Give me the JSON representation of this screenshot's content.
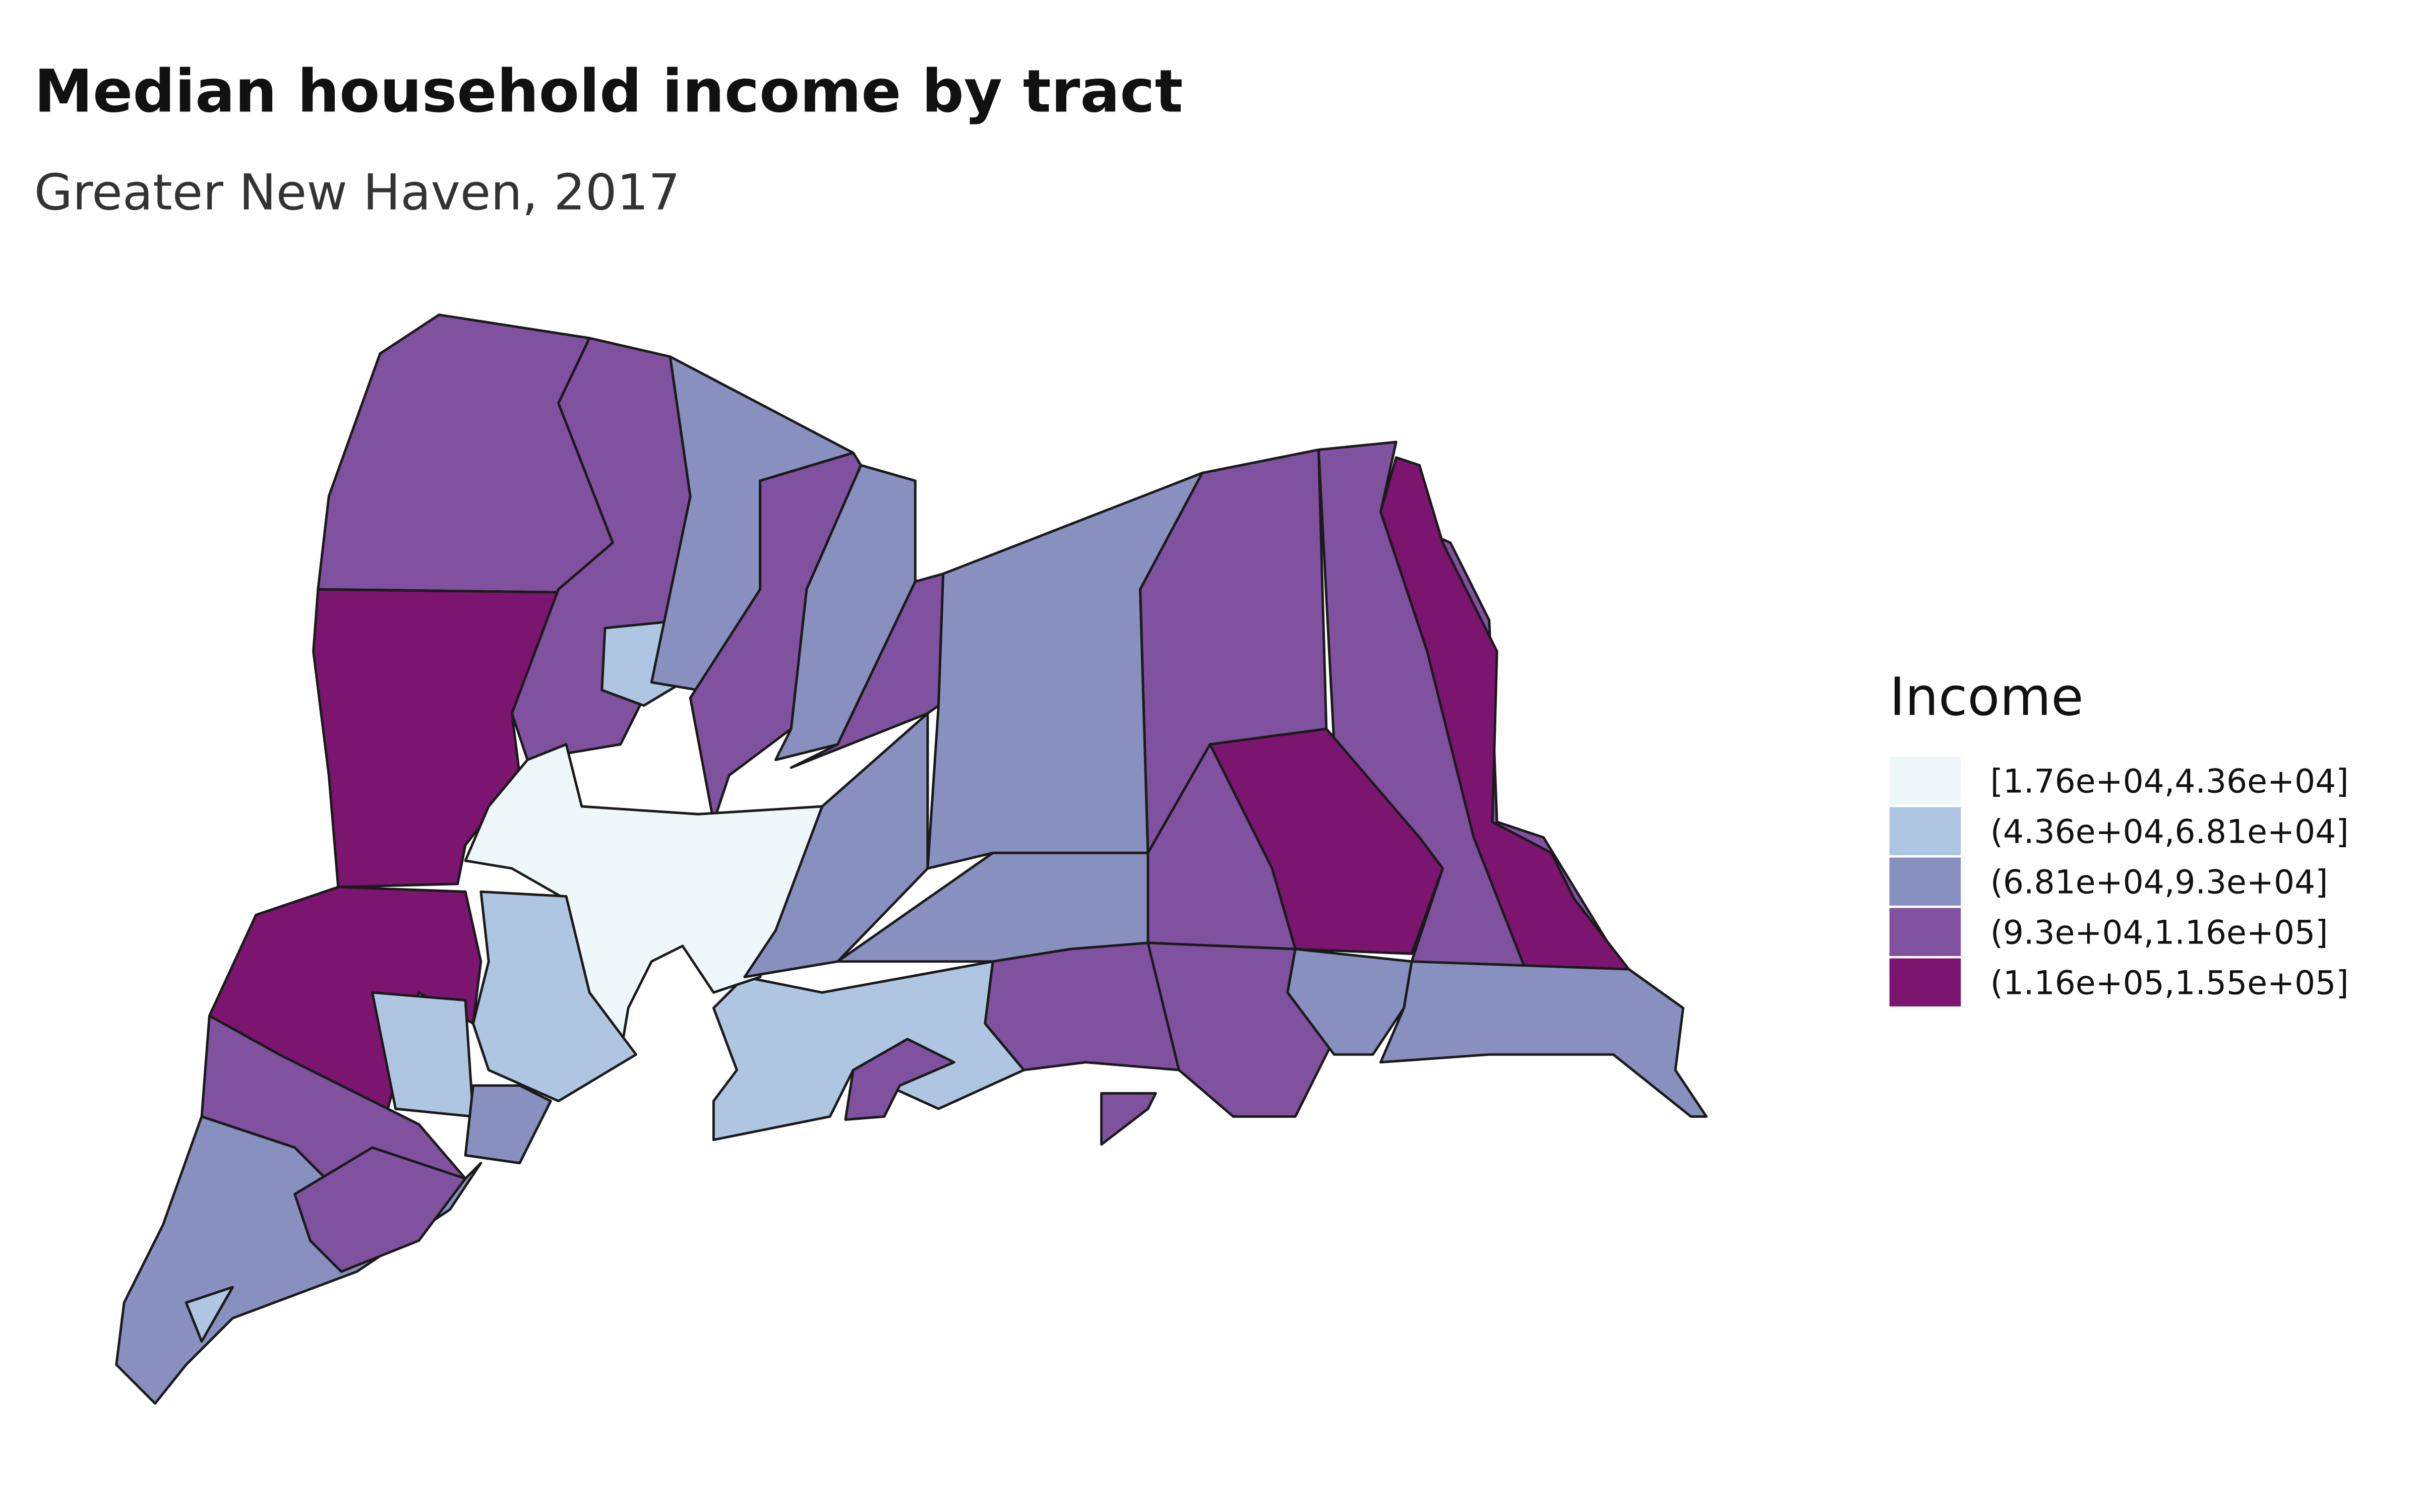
{
  "title": "Median household income by tract",
  "subtitle": "Greater New Haven, 2017",
  "legend": {
    "title": "Income",
    "items": [
      {
        "label": "[1.76e+04,4.36e+04]",
        "color": "#eef7fa"
      },
      {
        "label": "(4.36e+04,6.81e+04]",
        "color": "#aec6e1"
      },
      {
        "label": "(6.81e+04,9.3e+04]",
        "color": "#8890bf"
      },
      {
        "label": "(9.3e+04,1.16e+05]",
        "color": "#80519f"
      },
      {
        "label": "(1.16e+05,1.55e+05]",
        "color": "#7b1570"
      }
    ]
  }
}
